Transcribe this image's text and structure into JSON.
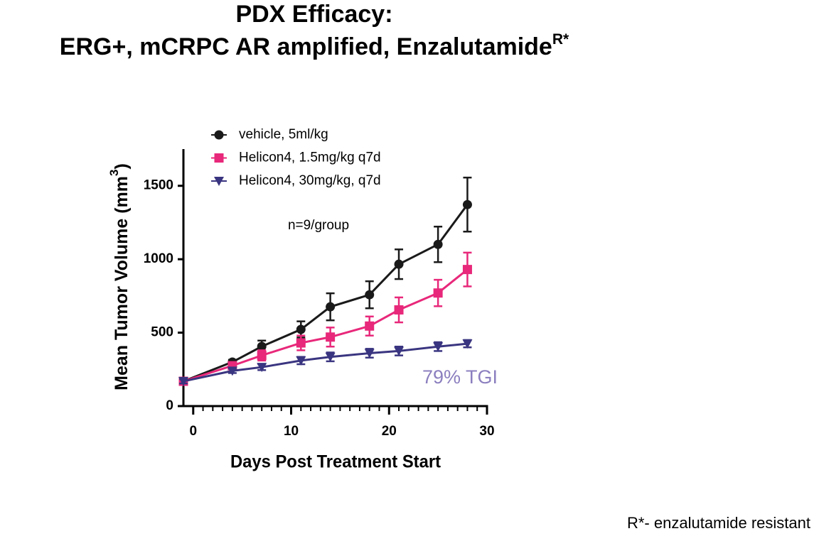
{
  "chart_data": {
    "type": "line",
    "title": [
      "PDX Efficacy:",
      "ERG+, mCRPC AR amplified, Enzalutamide"
    ],
    "title_superscript": "R*",
    "xlabel": "Days Post Treatment Start",
    "ylabel": [
      "Mean Tumor Volume (mm",
      "3",
      ")"
    ],
    "x": [
      -1,
      4,
      7,
      11,
      14,
      18,
      21,
      25,
      28
    ],
    "series": [
      {
        "name": "vehicle, 5ml/kg",
        "color": "#1a1a1a",
        "marker": "circle",
        "values": [
          169,
          300,
          406,
          522,
          676,
          758,
          966,
          1101,
          1372
        ],
        "errors": [
          15,
          15,
          40,
          55,
          92,
          92,
          101,
          121,
          184
        ]
      },
      {
        "name": "Helicon4, 1.5mg/kg q7d",
        "color": "#e8287a",
        "marker": "square",
        "values": [
          169,
          275,
          345,
          430,
          470,
          545,
          655,
          770,
          930
        ],
        "errors": [
          15,
          20,
          35,
          50,
          65,
          65,
          85,
          90,
          115
        ]
      },
      {
        "name": "Helicon4, 30mg/kg, q7d",
        "color": "#3a3580",
        "marker": "triangle-down",
        "values": [
          169,
          240,
          265,
          310,
          335,
          360,
          375,
          405,
          425
        ],
        "errors": [
          15,
          15,
          20,
          25,
          30,
          30,
          30,
          30,
          25
        ]
      }
    ],
    "xlim": [
      -1,
      30
    ],
    "xticks": [
      0,
      10,
      20,
      30
    ],
    "xminorticks": [
      1,
      2,
      3,
      4,
      5,
      6,
      7,
      8,
      9,
      11,
      12,
      13,
      14,
      15,
      16,
      17,
      18,
      19,
      21,
      22,
      23,
      24,
      25,
      26,
      27,
      28,
      29
    ],
    "ylim": [
      0,
      1750
    ],
    "yticks": [
      0,
      500,
      1000,
      1500
    ],
    "legend": "upper left",
    "annotations": [
      {
        "text": "n=9/group",
        "color": "#000000"
      },
      {
        "text": "79% TGI",
        "color": "#8c7fbf"
      }
    ],
    "footnote": "R*- enzalutamide resistant"
  }
}
